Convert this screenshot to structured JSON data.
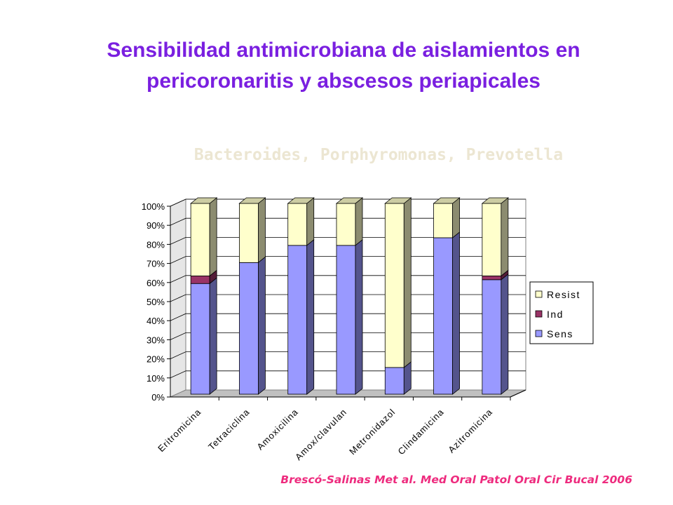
{
  "slide": {
    "title_line1": "Sensibilidad antimicrobiana de aislamientos en",
    "title_line2": "pericoronaritis y abscesos periapicales",
    "subtitle": "Bacteroides, Porphyromonas, Prevotella",
    "citation": "Brescó-Salinas Met al.  Med Oral Patol Oral Cir Bucal 2006"
  },
  "colors": {
    "sens": "#9999ff",
    "ind": "#993366",
    "resist": "#ffffcc",
    "floor": "#c0c0c0",
    "wall": "#ffffff"
  },
  "chart_data": {
    "type": "bar",
    "stacked": true,
    "percent": true,
    "three_d": true,
    "categories": [
      "Eritromicina",
      "Tetraciclina",
      "Amoxicilina",
      "Amox/clavulan",
      "Metronidazol",
      "Clindamicina",
      "Azitromicina"
    ],
    "series": [
      {
        "name": "Sens",
        "color": "#9999ff",
        "values": [
          58,
          69,
          78,
          78,
          14,
          82,
          60
        ]
      },
      {
        "name": "Ind",
        "color": "#993366",
        "values": [
          4,
          0,
          0,
          0,
          0,
          0,
          2
        ]
      },
      {
        "name": "Resist",
        "color": "#ffffcc",
        "values": [
          38,
          31,
          22,
          22,
          86,
          18,
          38
        ]
      }
    ],
    "yticks": [
      "0%",
      "10%",
      "20%",
      "30%",
      "40%",
      "50%",
      "60%",
      "70%",
      "80%",
      "90%",
      "100%"
    ],
    "ylim": [
      0,
      100
    ],
    "grid": true,
    "legend_position": "right"
  }
}
